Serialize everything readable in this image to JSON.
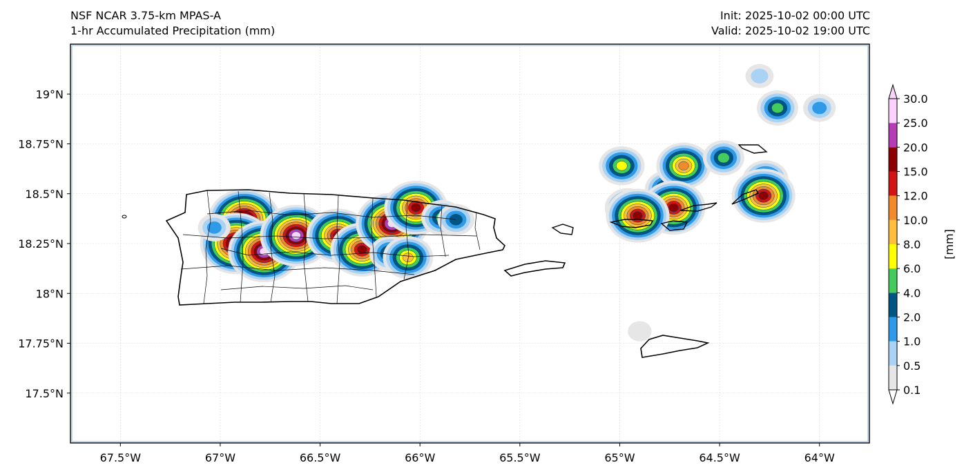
{
  "title": {
    "model": "NSF NCAR 3.75-km MPAS-A",
    "field": "1-hr Accumulated Precipitation (mm)",
    "init": "Init: 2025-10-02 00:00 UTC",
    "valid": "Valid: 2025-10-02 19:00 UTC"
  },
  "map": {
    "lon_range": [
      -67.75,
      -63.75
    ],
    "lat_range": [
      17.25,
      19.25
    ],
    "lon_ticks": [
      {
        "value": -67.5,
        "label": "67.5°W"
      },
      {
        "value": -67.0,
        "label": "67°W"
      },
      {
        "value": -66.5,
        "label": "66.5°W"
      },
      {
        "value": -66.0,
        "label": "66°W"
      },
      {
        "value": -65.5,
        "label": "65.5°W"
      },
      {
        "value": -65.0,
        "label": "65°W"
      },
      {
        "value": -64.5,
        "label": "64.5°W"
      },
      {
        "value": -64.0,
        "label": "64°W"
      }
    ],
    "lat_ticks": [
      {
        "value": 19.0,
        "label": "19°N"
      },
      {
        "value": 18.75,
        "label": "18.75°N"
      },
      {
        "value": 18.5,
        "label": "18.5°N"
      },
      {
        "value": 18.25,
        "label": "18.25°N"
      },
      {
        "value": 18.0,
        "label": "18°N"
      },
      {
        "value": 17.75,
        "label": "17.75°N"
      },
      {
        "value": 17.5,
        "label": "17.5°N"
      }
    ],
    "gridlines": true
  },
  "colorbar": {
    "unit_label": "[mm]",
    "levels": [
      "0.1",
      "0.5",
      "1.0",
      "2.0",
      "4.0",
      "6.0",
      "8.0",
      "10.0",
      "12.0",
      "15.0",
      "20.0",
      "25.0",
      "30.0"
    ],
    "colors": [
      "#e6e6e6",
      "#aad2f5",
      "#2f9ae8",
      "#005582",
      "#43cc5c",
      "#ffff00",
      "#ffbe3c",
      "#f08a2a",
      "#d21414",
      "#8c0000",
      "#b43cb4",
      "#fad2fa"
    ]
  },
  "precip_cells": [
    {
      "lon": -66.88,
      "lat": 18.37,
      "peak": 30
    },
    {
      "lon": -66.92,
      "lat": 18.25,
      "peak": 30
    },
    {
      "lon": -66.78,
      "lat": 18.21,
      "peak": 30
    },
    {
      "lon": -66.62,
      "lat": 18.29,
      "peak": 30
    },
    {
      "lon": -66.41,
      "lat": 18.29,
      "peak": 20
    },
    {
      "lon": -66.29,
      "lat": 18.22,
      "peak": 20
    },
    {
      "lon": -66.14,
      "lat": 18.35,
      "peak": 30
    },
    {
      "lon": -66.15,
      "lat": 18.2,
      "peak": 6
    },
    {
      "lon": -66.06,
      "lat": 18.18,
      "peak": 10
    },
    {
      "lon": -66.02,
      "lat": 18.43,
      "peak": 20
    },
    {
      "lon": -65.89,
      "lat": 18.38,
      "peak": 6
    },
    {
      "lon": -65.82,
      "lat": 18.37,
      "peak": 4
    },
    {
      "lon": -67.03,
      "lat": 18.33,
      "peak": 2
    },
    {
      "lon": -64.99,
      "lat": 18.64,
      "peak": 8
    },
    {
      "lon": -64.76,
      "lat": 18.52,
      "peak": 8
    },
    {
      "lon": -64.68,
      "lat": 18.64,
      "peak": 12
    },
    {
      "lon": -64.73,
      "lat": 18.43,
      "peak": 20
    },
    {
      "lon": -64.96,
      "lat": 18.43,
      "peak": 8
    },
    {
      "lon": -64.91,
      "lat": 18.39,
      "peak": 20
    },
    {
      "lon": -64.48,
      "lat": 18.68,
      "peak": 6
    },
    {
      "lon": -64.27,
      "lat": 18.57,
      "peak": 8
    },
    {
      "lon": -64.28,
      "lat": 18.49,
      "peak": 20
    },
    {
      "lon": -64.21,
      "lat": 18.93,
      "peak": 6
    },
    {
      "lon": -64.0,
      "lat": 18.93,
      "peak": 2
    },
    {
      "lon": -64.3,
      "lat": 19.09,
      "peak": 1
    },
    {
      "lon": -64.9,
      "lat": 17.81,
      "peak": 0.5
    }
  ]
}
